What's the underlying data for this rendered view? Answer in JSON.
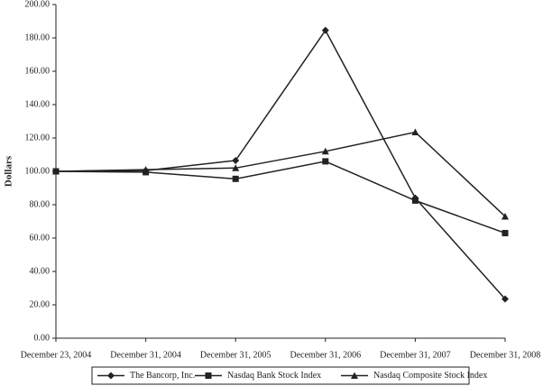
{
  "chart_data": {
    "type": "line",
    "y_label": "Dollars",
    "categories": [
      "December 23, 2004",
      "December 31, 2004",
      "December 31, 2005",
      "December 31, 2006",
      "December 31, 2007",
      "December 31, 2008"
    ],
    "series": [
      {
        "name": "The Bancorp, Inc.",
        "color": "#222222",
        "marker": "diamond",
        "values": [
          100,
          100.5,
          106.5,
          184.5,
          84,
          23.5
        ]
      },
      {
        "name": "Nasdaq Bank Stock Index",
        "color": "#222222",
        "marker": "square",
        "values": [
          100,
          99.5,
          95.5,
          106,
          82.5,
          63
        ]
      },
      {
        "name": "Nasdaq Composite Stock Index",
        "color": "#222222",
        "marker": "triangle",
        "values": [
          100,
          101,
          102,
          112,
          123.5,
          73
        ]
      }
    ],
    "ylim": [
      0,
      200
    ],
    "yticks": [
      {
        "value": 0,
        "label": "0.00"
      },
      {
        "value": 20,
        "label": "20.00"
      },
      {
        "value": 40,
        "label": "40.00"
      },
      {
        "value": 60,
        "label": "60.00"
      },
      {
        "value": 80,
        "label": "80.00"
      },
      {
        "value": 100,
        "label": "100.00"
      },
      {
        "value": 120,
        "label": "120.00"
      },
      {
        "value": 140,
        "label": "140.00"
      },
      {
        "value": 160,
        "label": "160.00"
      },
      {
        "value": 180,
        "label": "180.00"
      },
      {
        "value": 200,
        "label": "200.00"
      }
    ],
    "legend": "bottom"
  }
}
